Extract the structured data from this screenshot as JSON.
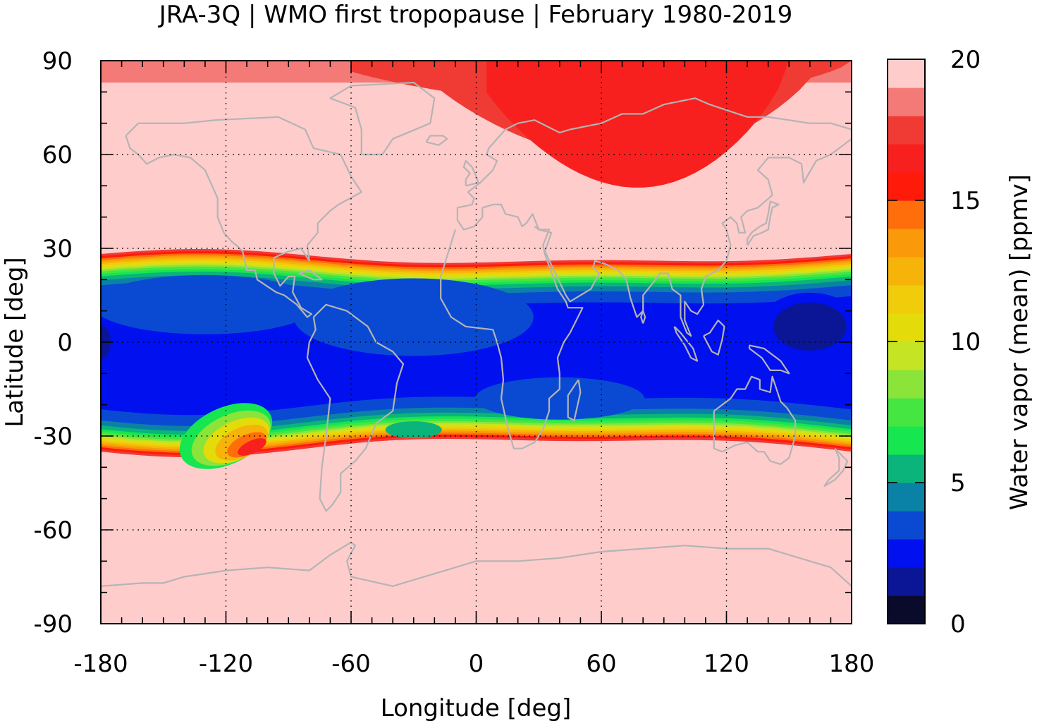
{
  "chart_data": {
    "type": "heatmap",
    "title": "JRA-3Q | WMO first tropopause | February 1980-2019",
    "xlabel": "Longitude [deg]",
    "ylabel": "Latitude [deg]",
    "xlim": [
      -180,
      180
    ],
    "ylim": [
      -90,
      90
    ],
    "xticks": [
      -180,
      -120,
      -60,
      0,
      60,
      120,
      180
    ],
    "yticks": [
      -90,
      -60,
      -30,
      0,
      30,
      60,
      90
    ],
    "grid": true,
    "colorbar": {
      "label": "Water vapor (mean) [ppmv]",
      "range": [
        0,
        20
      ],
      "ticks": [
        0,
        5,
        10,
        15,
        20
      ],
      "levels": [
        {
          "from": 0,
          "to": 1,
          "color": "#0a0a2a"
        },
        {
          "from": 1,
          "to": 2,
          "color": "#0a1696"
        },
        {
          "from": 2,
          "to": 3,
          "color": "#0010ee"
        },
        {
          "from": 3,
          "to": 4,
          "color": "#0a4ad2"
        },
        {
          "from": 4,
          "to": 5,
          "color": "#0a82a6"
        },
        {
          "from": 5,
          "to": 6,
          "color": "#0ab47a"
        },
        {
          "from": 6,
          "to": 7,
          "color": "#16e650"
        },
        {
          "from": 7,
          "to": 8,
          "color": "#46e642"
        },
        {
          "from": 8,
          "to": 9,
          "color": "#8ae43a"
        },
        {
          "from": 9,
          "to": 10,
          "color": "#c4e424"
        },
        {
          "from": 10,
          "to": 11,
          "color": "#e4dc0a"
        },
        {
          "from": 11,
          "to": 12,
          "color": "#f0cc0a"
        },
        {
          "from": 12,
          "to": 13,
          "color": "#f6b40a"
        },
        {
          "from": 13,
          "to": 14,
          "color": "#fa9a0a"
        },
        {
          "from": 14,
          "to": 15,
          "color": "#ff6e0a"
        },
        {
          "from": 15,
          "to": 16,
          "color": "#ff1a0a"
        },
        {
          "from": 16,
          "to": 17,
          "color": "#f8201e"
        },
        {
          "from": 17,
          "to": 18,
          "color": "#f03a34"
        },
        {
          "from": 18,
          "to": 19,
          "color": "#f47a78"
        },
        {
          "from": 19,
          "to": 20,
          "color": "#ffcccc"
        }
      ]
    },
    "fields": {
      "background_value": 20,
      "tropical_band": {
        "north_edge_lat": 27,
        "south_edge_lat": -33,
        "core_value": 2.5
      },
      "arctic_high_value_region": {
        "lon_range": [
          -60,
          180
        ],
        "lat_range": [
          45,
          90
        ],
        "value": 16
      },
      "west_pacific_minimum": {
        "lon": 160,
        "lat": 5,
        "value": 1.5
      },
      "east_pacific_moist_tongue": {
        "lon": -115,
        "lat": -28,
        "value": 14
      }
    }
  }
}
